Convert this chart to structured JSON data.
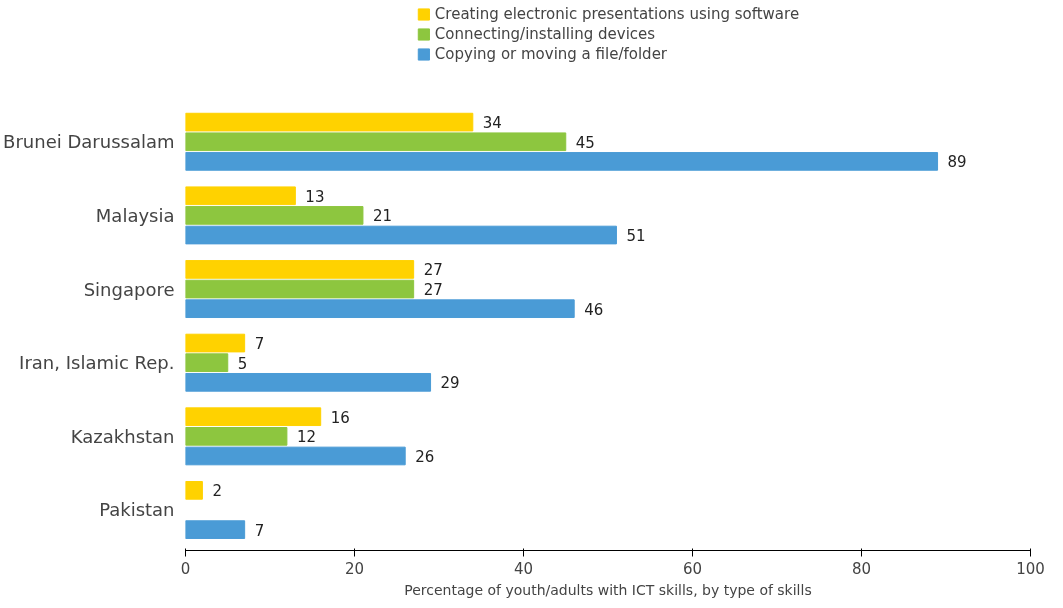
{
  "chart_data": {
    "type": "bar",
    "orientation": "horizontal",
    "categories": [
      "Brunei Darussalam",
      "Malaysia",
      "Singapore",
      "Iran, Islamic Rep.",
      "Kazakhstan",
      "Pakistan"
    ],
    "series": [
      {
        "name": "Creating electronic presentations using software",
        "color": "#ffd200",
        "values": [
          34,
          13,
          27,
          7,
          16,
          2
        ]
      },
      {
        "name": "Connecting/installing devices",
        "color": "#8dc63f",
        "values": [
          45,
          21,
          27,
          5,
          12,
          null
        ]
      },
      {
        "name": "Copying or moving a file/folder",
        "color": "#4a9bd6",
        "values": [
          89,
          51,
          46,
          29,
          26,
          7
        ]
      }
    ],
    "xlim": [
      0,
      100
    ],
    "xticks": [
      0,
      20,
      40,
      60,
      80,
      100
    ],
    "xlabel": "Percentage of youth/adults with ICT skills, by type of skills",
    "data_labels": true,
    "legend": "top"
  }
}
